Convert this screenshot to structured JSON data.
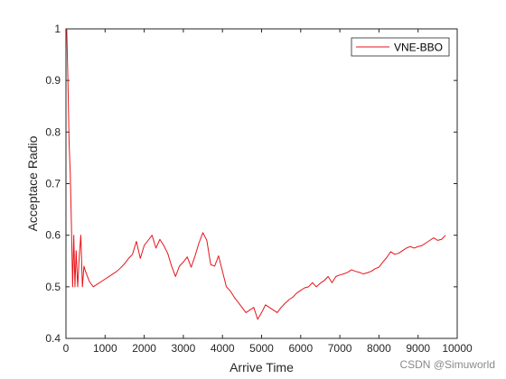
{
  "chart_data": {
    "type": "line",
    "xlabel": "Arrive Time",
    "ylabel": "Acceptace Radio",
    "xlim": [
      0,
      10000
    ],
    "ylim": [
      0.4,
      1
    ],
    "xticks": [
      0,
      1000,
      2000,
      3000,
      4000,
      5000,
      6000,
      7000,
      8000,
      9000,
      10000
    ],
    "yticks": [
      0.4,
      0.5,
      0.6,
      0.7,
      0.8,
      0.9,
      1
    ],
    "xtick_labels": [
      "0",
      "1000",
      "2000",
      "3000",
      "4000",
      "5000",
      "6000",
      "7000",
      "8000",
      "9000",
      "10000"
    ],
    "ytick_labels": [
      "0.4",
      "0.5",
      "0.6",
      "0.7",
      "0.8",
      "0.9",
      "1"
    ],
    "grid": false,
    "legend_position": "top-right",
    "series": [
      {
        "name": "VNE-BBO",
        "color": "#e8141a",
        "x": [
          20,
          50,
          80,
          110,
          140,
          170,
          200,
          230,
          260,
          300,
          340,
          380,
          420,
          460,
          500,
          600,
          700,
          800,
          900,
          1000,
          1100,
          1200,
          1300,
          1400,
          1500,
          1600,
          1700,
          1800,
          1900,
          2000,
          2100,
          2200,
          2300,
          2400,
          2500,
          2600,
          2700,
          2800,
          2900,
          3000,
          3100,
          3200,
          3300,
          3400,
          3500,
          3600,
          3700,
          3800,
          3900,
          4000,
          4100,
          4200,
          4300,
          4400,
          4500,
          4600,
          4700,
          4800,
          4900,
          5000,
          5100,
          5200,
          5300,
          5400,
          5500,
          5600,
          5700,
          5800,
          5900,
          6000,
          6100,
          6200,
          6300,
          6400,
          6500,
          6600,
          6700,
          6800,
          6900,
          7000,
          7100,
          7200,
          7300,
          7400,
          7500,
          7600,
          7700,
          7800,
          7900,
          8000,
          8100,
          8200,
          8300,
          8400,
          8500,
          8600,
          8700,
          8800,
          8900,
          9000,
          9100,
          9200,
          9300,
          9400,
          9500,
          9600,
          9700
        ],
        "values": [
          1.0,
          0.9,
          0.78,
          0.72,
          0.62,
          0.5,
          0.6,
          0.5,
          0.57,
          0.5,
          0.56,
          0.6,
          0.5,
          0.54,
          0.53,
          0.51,
          0.5,
          0.505,
          0.51,
          0.515,
          0.52,
          0.525,
          0.53,
          0.537,
          0.545,
          0.555,
          0.563,
          0.588,
          0.555,
          0.58,
          0.59,
          0.6,
          0.575,
          0.592,
          0.58,
          0.565,
          0.54,
          0.52,
          0.54,
          0.548,
          0.558,
          0.538,
          0.56,
          0.585,
          0.605,
          0.59,
          0.543,
          0.54,
          0.56,
          0.53,
          0.5,
          0.492,
          0.48,
          0.47,
          0.46,
          0.45,
          0.455,
          0.46,
          0.437,
          0.45,
          0.465,
          0.46,
          0.455,
          0.45,
          0.46,
          0.468,
          0.475,
          0.48,
          0.488,
          0.493,
          0.498,
          0.5,
          0.508,
          0.5,
          0.507,
          0.512,
          0.52,
          0.508,
          0.52,
          0.523,
          0.525,
          0.528,
          0.533,
          0.53,
          0.528,
          0.525,
          0.527,
          0.53,
          0.535,
          0.538,
          0.548,
          0.557,
          0.568,
          0.563,
          0.565,
          0.57,
          0.575,
          0.578,
          0.575,
          0.578,
          0.58,
          0.585,
          0.59,
          0.595,
          0.59,
          0.592,
          0.6
        ]
      }
    ]
  },
  "watermark": "CSDN @Simuworld"
}
